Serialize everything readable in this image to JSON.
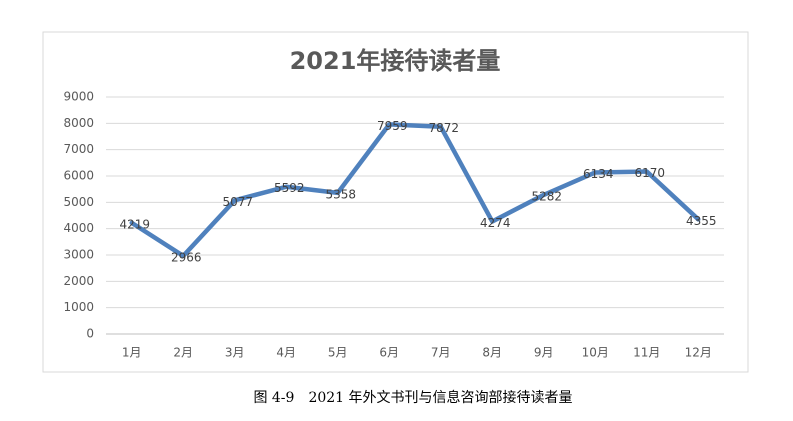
{
  "chart_data": {
    "type": "line",
    "title": "2021年接待读者量",
    "categories": [
      "1月",
      "2月",
      "3月",
      "4月",
      "5月",
      "6月",
      "7月",
      "8月",
      "9月",
      "10月",
      "11月",
      "12月"
    ],
    "series": [
      {
        "name": "接待读者量",
        "color": "#4f81bd",
        "values": [
          4219,
          2966,
          5077,
          5592,
          5358,
          7959,
          7872,
          4274,
          5282,
          6134,
          6170,
          4355
        ]
      }
    ],
    "ylim": [
      0,
      9000
    ],
    "yticks": [
      0,
      1000,
      2000,
      3000,
      4000,
      5000,
      6000,
      7000,
      8000,
      9000
    ],
    "grid": true,
    "legend": false
  },
  "caption": "图 4-9　2021 年外文书刊与信息咨询部接待读者量"
}
